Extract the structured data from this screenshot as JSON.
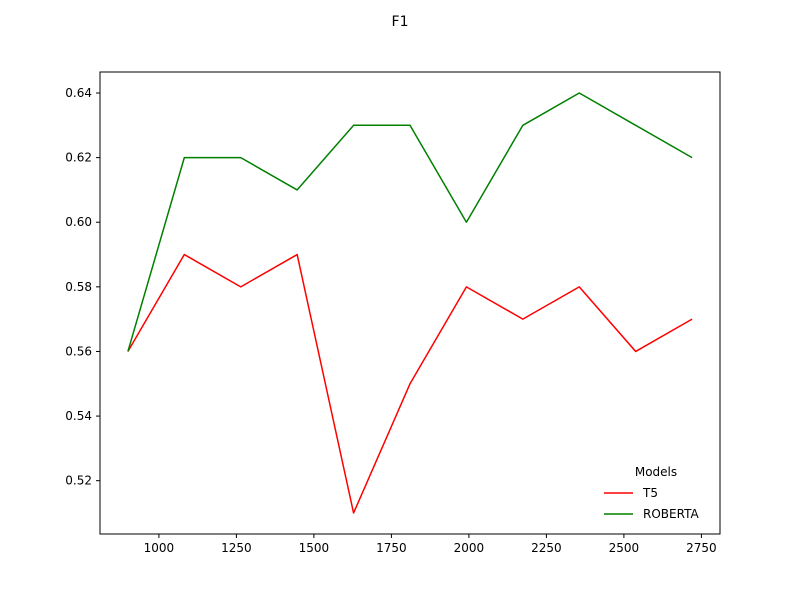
{
  "chart_data": {
    "type": "line",
    "title": "F1",
    "xlabel": "",
    "ylabel": "",
    "xlim": [
      810,
      2810
    ],
    "ylim": [
      0.5035,
      0.6465
    ],
    "xticks": [
      1000,
      1250,
      1500,
      1750,
      2000,
      2250,
      2500,
      2750
    ],
    "xtick_labels": [
      "1000",
      "1250",
      "1500",
      "1750",
      "2000",
      "2250",
      "2500",
      "2750"
    ],
    "yticks": [
      0.52,
      0.54,
      0.56,
      0.58,
      0.6,
      0.62,
      0.64
    ],
    "ytick_labels": [
      "0.52",
      "0.54",
      "0.56",
      "0.58",
      "0.60",
      "0.62",
      "0.64"
    ],
    "grid": false,
    "legend": {
      "title": "Models",
      "placement": "lower-right"
    },
    "x": [
      900,
      1082,
      1264,
      1446,
      1628,
      1810,
      1992,
      2174,
      2356,
      2538,
      2720
    ],
    "series": [
      {
        "name": "T5",
        "color": "#ff0000",
        "values": [
          0.56,
          0.59,
          0.58,
          0.59,
          0.51,
          0.55,
          0.58,
          0.57,
          0.58,
          0.56,
          0.57
        ]
      },
      {
        "name": "ROBERTA",
        "color": "#008000",
        "values": [
          0.56,
          0.62,
          0.62,
          0.61,
          0.63,
          0.63,
          0.6,
          0.63,
          0.64,
          0.63,
          0.62
        ]
      }
    ]
  }
}
